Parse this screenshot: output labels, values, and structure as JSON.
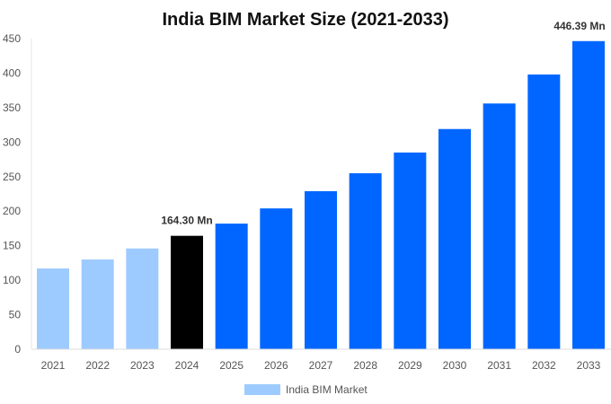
{
  "chart_data": {
    "type": "bar",
    "title": "India BIM Market Size (2021-2033)",
    "categories": [
      "2021",
      "2022",
      "2023",
      "2024",
      "2025",
      "2026",
      "2027",
      "2028",
      "2029",
      "2030",
      "2031",
      "2032",
      "2033"
    ],
    "series": [
      {
        "name": "India BIM Market",
        "values": [
          117,
          130,
          146,
          164.3,
          182,
          204,
          229,
          255,
          285,
          319,
          356,
          398,
          446.39
        ]
      }
    ],
    "bar_colors": [
      "#9ecbff",
      "#9ecbff",
      "#9ecbff",
      "#000000",
      "#0066ff",
      "#0066ff",
      "#0066ff",
      "#0066ff",
      "#0066ff",
      "#0066ff",
      "#0066ff",
      "#0066ff",
      "#0066ff"
    ],
    "data_labels": [
      {
        "index": 3,
        "text": "164.30 Mn"
      },
      {
        "index": 12,
        "text": "446.39 Mn"
      }
    ],
    "yticks": [
      0,
      50,
      100,
      150,
      200,
      250,
      300,
      350,
      400,
      450
    ],
    "ylim": [
      0,
      450
    ],
    "grid": false,
    "legend": {
      "position": "bottom",
      "label": "India BIM Market",
      "color": "#9ecbff"
    }
  }
}
